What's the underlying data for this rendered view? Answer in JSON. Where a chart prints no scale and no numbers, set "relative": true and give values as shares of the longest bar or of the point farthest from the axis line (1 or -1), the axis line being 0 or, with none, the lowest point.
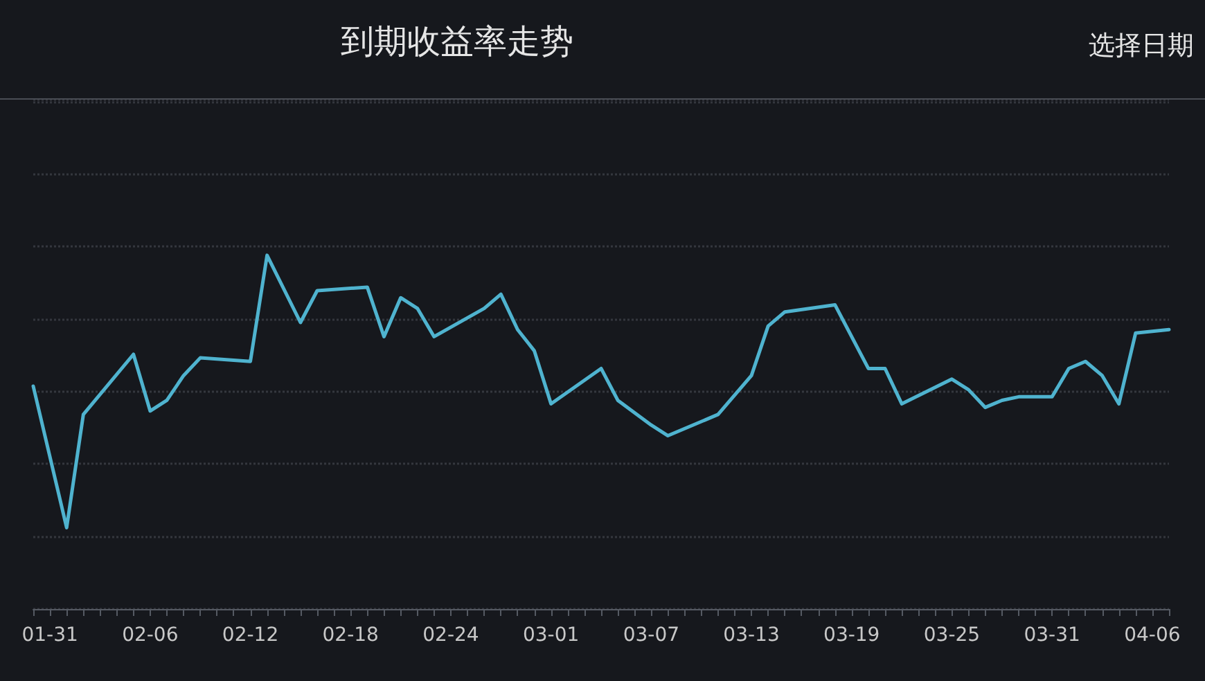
{
  "chart_data": {
    "type": "line",
    "title": "到期收益率走势",
    "annotations": [
      "选择日期"
    ],
    "relative": true,
    "grid": "y",
    "marker": "none",
    "line_style": "solid",
    "categories": [
      null,
      "01-31",
      null,
      null,
      null,
      null,
      null,
      "02-06",
      null,
      null,
      null,
      null,
      null,
      "02-12",
      null,
      null,
      null,
      null,
      null,
      "02-18",
      null,
      null,
      null,
      null,
      null,
      "02-24",
      null,
      null,
      null,
      null,
      null,
      "03-01",
      null,
      null,
      null,
      null,
      null,
      "03-07",
      null,
      null,
      null,
      null,
      null,
      "03-13",
      null,
      null,
      null,
      null,
      null,
      "03-19",
      null,
      null,
      null,
      null,
      null,
      "03-25",
      null,
      null,
      null,
      null,
      null,
      "03-31",
      null,
      null,
      null,
      null,
      null,
      "04-06",
      null
    ],
    "series": [
      {
        "color": "#4fb3cf",
        "values": [
          0.63,
          null,
          0.23,
          0.55,
          null,
          null,
          0.72,
          0.56,
          0.59,
          0.66,
          0.71,
          null,
          null,
          0.7,
          1,
          null,
          0.81,
          0.9,
          null,
          null,
          0.91,
          0.77,
          0.88,
          0.85,
          0.77,
          null,
          null,
          0.85,
          0.89,
          0.79,
          0.73,
          0.58,
          null,
          null,
          0.68,
          0.59,
          null,
          0.52,
          0.49,
          null,
          null,
          0.55,
          null,
          0.66,
          0.8,
          0.84,
          null,
          null,
          0.86,
          null,
          0.68,
          0.68,
          0.58,
          null,
          null,
          0.65,
          0.62,
          0.57,
          0.59,
          0.6,
          null,
          0.6,
          0.68,
          0.7,
          0.66,
          0.58,
          0.78,
          null,
          0.79
        ]
      }
    ]
  }
}
